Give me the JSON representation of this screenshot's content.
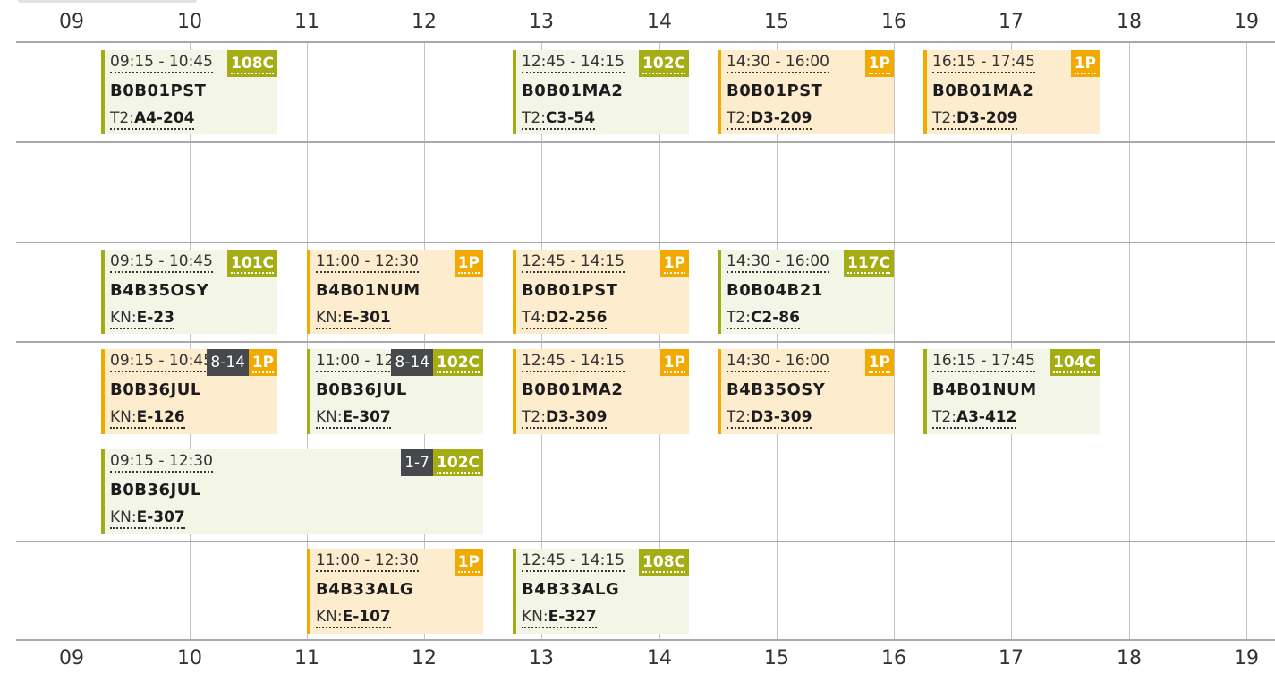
{
  "hours": [
    "09",
    "10",
    "11",
    "12",
    "13",
    "14",
    "15",
    "16",
    "17",
    "18",
    "19"
  ],
  "events": [
    {
      "time": "09:15 - 10:45",
      "code": "B0B01PST",
      "room_prefix": "T2:",
      "room": "A4-204",
      "badge": "108C",
      "kind": "exercise"
    },
    {
      "time": "12:45 - 14:15",
      "code": "B0B01MA2",
      "room_prefix": "T2:",
      "room": "C3-54",
      "badge": "102C",
      "kind": "exercise"
    },
    {
      "time": "14:30 - 16:00",
      "code": "B0B01PST",
      "room_prefix": "T2:",
      "room": "D3-209",
      "badge": "1P",
      "kind": "lecture"
    },
    {
      "time": "16:15 - 17:45",
      "code": "B0B01MA2",
      "room_prefix": "T2:",
      "room": "D3-209",
      "badge": "1P",
      "kind": "lecture"
    },
    {
      "time": "09:15 - 10:45",
      "code": "B4B35OSY",
      "room_prefix": "KN:",
      "room": "E-23",
      "badge": "101C",
      "kind": "exercise"
    },
    {
      "time": "11:00 - 12:30",
      "code": "B4B01NUM",
      "room_prefix": "KN:",
      "room": "E-301",
      "badge": "1P",
      "kind": "lecture"
    },
    {
      "time": "12:45 - 14:15",
      "code": "B0B01PST",
      "room_prefix": "T4:",
      "room": "D2-256",
      "badge": "1P",
      "kind": "lecture"
    },
    {
      "time": "14:30 - 16:00",
      "code": "B0B04B21",
      "room_prefix": "T2:",
      "room": "C2-86",
      "badge": "117C",
      "kind": "exercise"
    },
    {
      "time": "09:15 - 10:45",
      "code": "B0B36JUL",
      "room_prefix": "KN:",
      "room": "E-126",
      "badge": "1P",
      "weeks": "8-14",
      "kind": "lecture"
    },
    {
      "time": "11:00 - 12:30",
      "code": "B0B36JUL",
      "room_prefix": "KN:",
      "room": "E-307",
      "badge": "102C",
      "weeks": "8-14",
      "kind": "exercise"
    },
    {
      "time": "12:45 - 14:15",
      "code": "B0B01MA2",
      "room_prefix": "T2:",
      "room": "D3-309",
      "badge": "1P",
      "kind": "lecture"
    },
    {
      "time": "14:30 - 16:00",
      "code": "B4B35OSY",
      "room_prefix": "T2:",
      "room": "D3-309",
      "badge": "1P",
      "kind": "lecture"
    },
    {
      "time": "16:15 - 17:45",
      "code": "B4B01NUM",
      "room_prefix": "T2:",
      "room": "A3-412",
      "badge": "104C",
      "kind": "exercise"
    },
    {
      "time": "09:15 - 12:30",
      "code": "B0B36JUL",
      "room_prefix": "KN:",
      "room": "E-307",
      "badge": "102C",
      "weeks": "1-7",
      "kind": "exercise"
    },
    {
      "time": "11:00 - 12:30",
      "code": "B4B33ALG",
      "room_prefix": "KN:",
      "room": "E-107",
      "badge": "1P",
      "kind": "lecture"
    },
    {
      "time": "12:45 - 14:15",
      "code": "B4B33ALG",
      "room_prefix": "KN:",
      "room": "E-327",
      "badge": "108C",
      "kind": "exercise"
    }
  ],
  "colors": {
    "lecture_accent": "#f2a900",
    "lecture_bg": "#fdecce",
    "exercise_accent": "#a4ad13",
    "exercise_bg": "#f3f5e6",
    "weeks_badge": "#46484b"
  }
}
